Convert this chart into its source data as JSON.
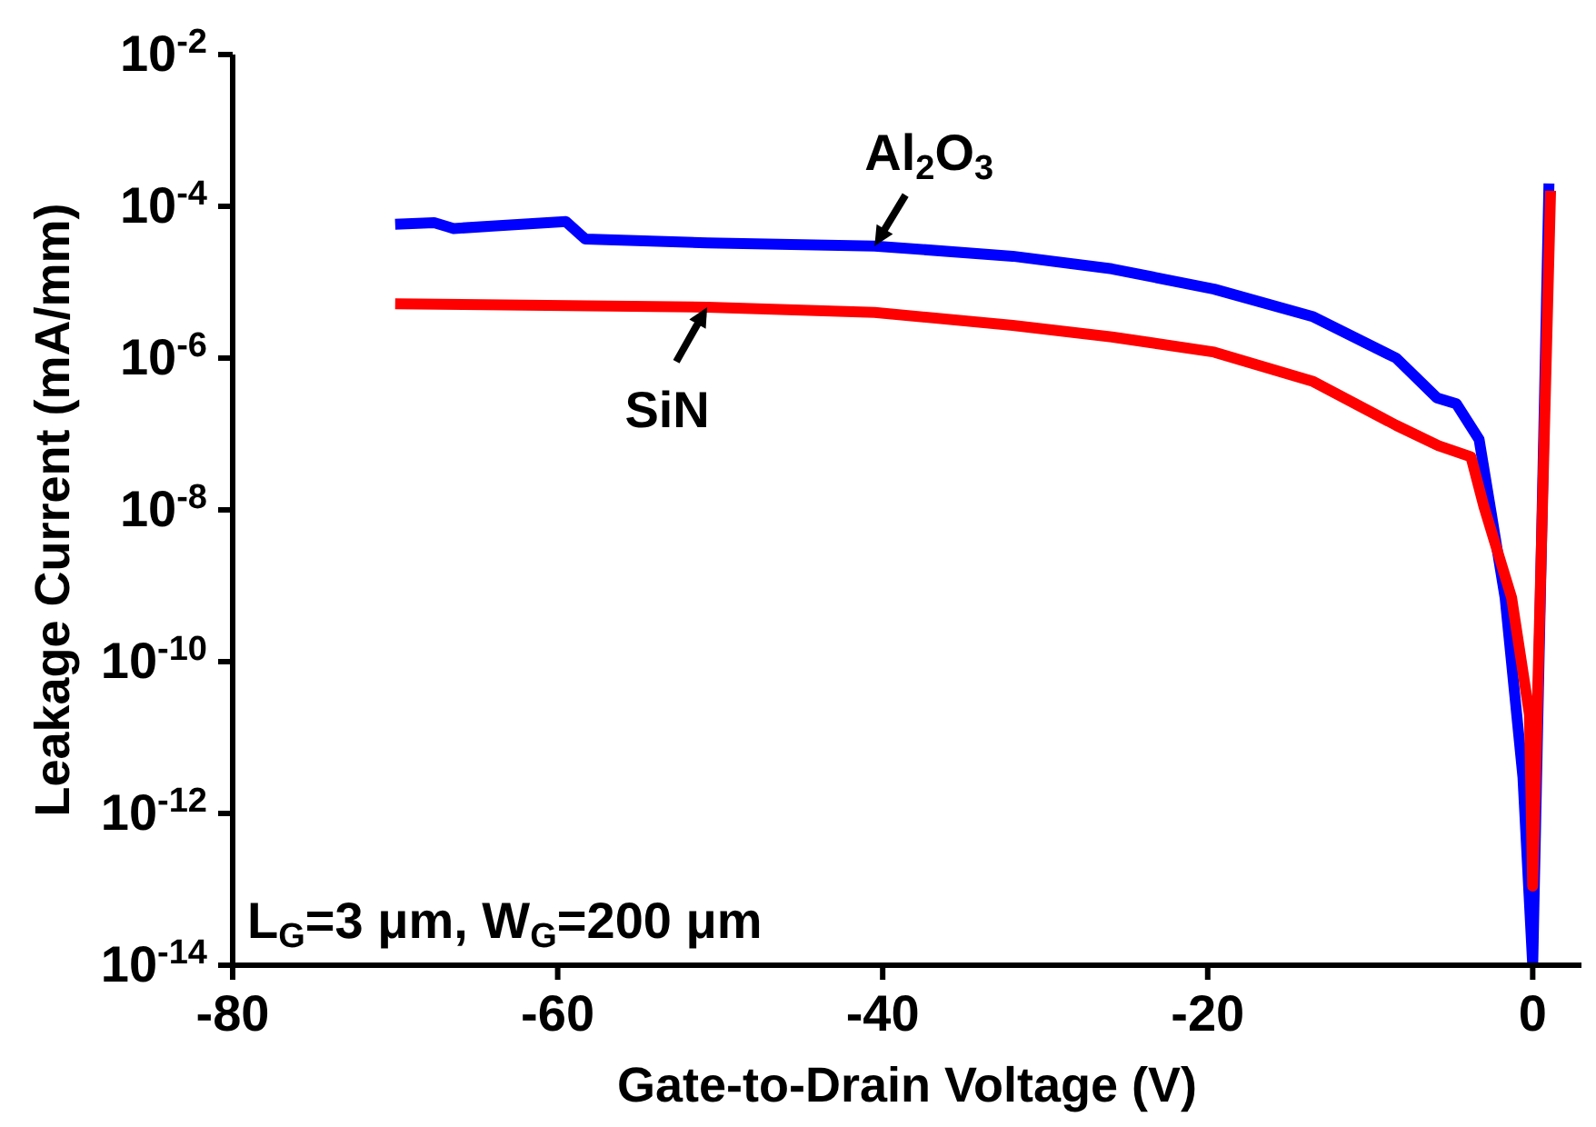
{
  "chart_data": {
    "type": "line",
    "xlabel": "Gate-to-Drain Voltage (V)",
    "ylabel": "Leakage Current (mA/mm)",
    "log": "y",
    "xlim": [
      -80,
      3
    ],
    "xticks": [
      -80,
      -60,
      -40,
      -20,
      0
    ],
    "ylim": [
      1e-14,
      0.01
    ],
    "yticks": [
      {
        "value": 1e-14,
        "label": "10$^{-14}$"
      },
      {
        "value": 1e-12,
        "label": "10$^{-12}$"
      },
      {
        "value": 1e-10,
        "label": "10$^{-10}$"
      },
      {
        "value": 1e-08,
        "label": "10$^{-8}$"
      },
      {
        "value": 1e-06,
        "label": "10$^{-6}$"
      },
      {
        "value": 0.0001,
        "label": "10$^{-4}$"
      },
      {
        "value": 0.01,
        "label": "10$^{-2}$"
      }
    ],
    "marker": "none",
    "line_style": "solid",
    "series": [
      {
        "name": "Al$_{2}$O$_{3}$",
        "color": "#0000ff",
        "x": [
          -70,
          -67.6,
          -66.4,
          -59.5,
          -58.3,
          -50.8,
          -40.5,
          -32,
          -25.9,
          -19.6,
          -13.5,
          -8.4,
          -5.9,
          -4.7,
          -3.3,
          -1.7,
          -0.6,
          0,
          1
        ],
        "values": [
          5.8e-05,
          6.1e-05,
          5.1e-05,
          6.3e-05,
          3.7e-05,
          3.3e-05,
          3e-05,
          2.2e-05,
          1.5e-05,
          8.1e-06,
          3.5e-06,
          1e-06,
          3e-07,
          2.5e-07,
          8.5e-08,
          7e-10,
          3e-12,
          1e-14,
          0.0002
        ]
      },
      {
        "name": "SiN",
        "color": "#ff0000",
        "x": [
          -70,
          -50.8,
          -40.5,
          -32,
          -25.9,
          -19.6,
          -13.5,
          -8.4,
          -5.8,
          -3.8,
          -3,
          -1.3,
          -0.2,
          0,
          1.1
        ],
        "values": [
          5.2e-06,
          4.7e-06,
          4e-06,
          2.7e-06,
          1.9e-06,
          1.2e-06,
          4.9e-07,
          1.3e-07,
          7e-08,
          5e-08,
          1.1e-08,
          7e-10,
          2e-11,
          1.1e-13,
          0.00016
        ]
      }
    ],
    "annotations": [
      "L$_{G}$=3 μm, W$_{G}$=200 μm"
    ]
  }
}
